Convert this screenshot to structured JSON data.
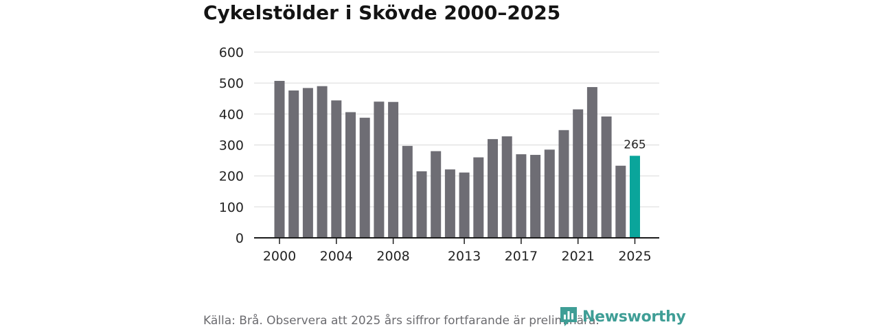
{
  "title": "Cykelstölder i Skövde 2000–2025",
  "source": "Källa: Brå. Observera att 2025 års siffror fortfarande är preliminära.",
  "logo": {
    "text": "Newsworthy",
    "icon": "newsworthy-logo-icon"
  },
  "colors": {
    "bar": "#6e6d74",
    "highlight": "#0aa59b",
    "grid": "#dedede",
    "axis": "#1a1a1a",
    "text": "#222222"
  },
  "chart_data": {
    "type": "bar",
    "title": "Cykelstölder i Skövde 2000–2025",
    "xlabel": "",
    "ylabel": "",
    "ylim": [
      0,
      600
    ],
    "yticks": [
      "0",
      "100",
      "200",
      "300",
      "400",
      "500",
      "600"
    ],
    "xtick_labels": [
      "2000",
      "2004",
      "2008",
      "2013",
      "2017",
      "2021",
      "2025"
    ],
    "grid": true,
    "categories": [
      "2000",
      "2001",
      "2002",
      "2003",
      "2004",
      "2005",
      "2006",
      "2007",
      "2008",
      "2009",
      "2010",
      "2011",
      "2012",
      "2013",
      "2014",
      "2015",
      "2016",
      "2017",
      "2018",
      "2019",
      "2020",
      "2021",
      "2022",
      "2023",
      "2024",
      "2025"
    ],
    "values": [
      507,
      476,
      484,
      490,
      444,
      406,
      388,
      440,
      439,
      297,
      215,
      280,
      221,
      211,
      260,
      319,
      328,
      270,
      268,
      285,
      348,
      415,
      487,
      392,
      233,
      265
    ],
    "highlight": {
      "category": "2025",
      "label": "265"
    }
  }
}
